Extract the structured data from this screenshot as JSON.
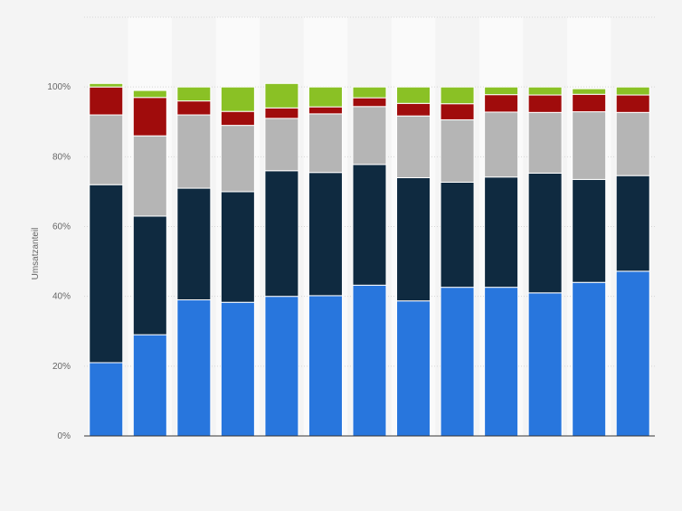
{
  "chart_data": {
    "type": "bar",
    "stacked": true,
    "ylabel": "Umsatzanteil",
    "xlabel": "",
    "title": "",
    "ylim": [
      0,
      120
    ],
    "yticks": [
      0,
      20,
      40,
      60,
      80,
      100
    ],
    "ytick_labels": [
      "0%",
      "20%",
      "40%",
      "60%",
      "80%",
      "100%"
    ],
    "grid": true,
    "legend": "none",
    "categories": [
      "",
      "",
      "",
      "",
      "",
      "",
      "",
      "",
      "",
      "",
      "",
      "",
      ""
    ],
    "series": [
      {
        "color": "#2876dd",
        "values": [
          21,
          29,
          39,
          38.3,
          40,
          40.2,
          43.2,
          38.7,
          42.6,
          42.6,
          41,
          44,
          47.2
        ]
      },
      {
        "color": "#0f2a40",
        "values": [
          51,
          34,
          32,
          31.7,
          36,
          35.3,
          34.6,
          35.3,
          30.1,
          31.6,
          34.3,
          29.5,
          27.4
        ]
      },
      {
        "color": "#b5b5b5",
        "values": [
          20,
          23,
          21,
          19,
          15,
          16.8,
          16.6,
          17.7,
          17.9,
          18.6,
          17.4,
          19.4,
          18.1
        ]
      },
      {
        "color": "#a00c0c",
        "values": [
          8,
          11,
          4,
          4,
          3,
          2,
          2.5,
          3.6,
          4.6,
          5,
          5,
          5,
          5
        ]
      },
      {
        "color": "#8ac125",
        "values": [
          1,
          2,
          4,
          7,
          7,
          5.7,
          3.1,
          4.7,
          4.8,
          2.2,
          2.3,
          1.6,
          2.3
        ]
      }
    ]
  }
}
